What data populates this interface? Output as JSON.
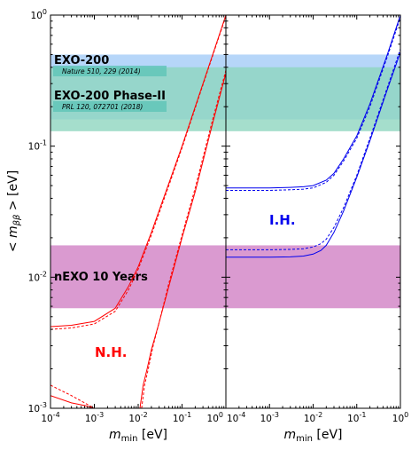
{
  "chart_data": [
    {
      "panel": "normal-hierarchy",
      "type": "line",
      "xscale": "log",
      "yscale": "log",
      "xlim": [
        0.0001,
        1
      ],
      "ylim": [
        0.001,
        1
      ],
      "xlabel": "m_min [eV]",
      "ylabel": "< m_ββ > [eV]",
      "x_tick_labels": [
        "10^-4",
        "10^-3",
        "10^-2",
        "10^-1",
        "10^0"
      ],
      "y_tick_labels": [
        "10^-3",
        "10^-2",
        "10^-1",
        "10^0"
      ],
      "label": "N.H.",
      "label_color": "#ff0000",
      "bands": [
        {
          "name": "EXO-200",
          "reference": "Nature 510, 229 (2014)",
          "y_range": [
            0.16,
            0.5
          ],
          "color": "#a9cff8"
        },
        {
          "name": "EXO-200 Phase-II",
          "reference": "PRL 120, 072701 (2018)",
          "y_range": [
            0.13,
            0.4
          ],
          "color": "#8fd6bf"
        },
        {
          "name": "nEXO 10 Years",
          "y_range": [
            0.0058,
            0.0175
          ],
          "color": "#d895cd"
        }
      ],
      "series": [
        {
          "line_style": "solid",
          "color": "#ff0000",
          "x": [
            0.0001,
            0.0003,
            0.001,
            0.003,
            0.006,
            0.01,
            0.02,
            0.05,
            0.1,
            0.2,
            0.5,
            1.0
          ],
          "y": [
            0.0042,
            0.0043,
            0.0046,
            0.0058,
            0.0085,
            0.012,
            0.022,
            0.052,
            0.1,
            0.2,
            0.5,
            1.0
          ]
        },
        {
          "line_style": "solid",
          "color": "#ff0000",
          "x": [
            0.0001,
            0.0003,
            0.0006,
            0.001
          ],
          "y": [
            0.00125,
            0.0011,
            0.00105,
            0.001
          ]
        },
        {
          "line_style": "solid",
          "color": "#ff0000",
          "x": [
            0.011,
            0.013,
            0.016,
            0.02,
            0.03,
            0.05,
            0.1,
            0.2,
            0.5,
            1.0
          ],
          "y": [
            0.001,
            0.0015,
            0.002,
            0.0028,
            0.0045,
            0.0085,
            0.02,
            0.045,
            0.15,
            0.36
          ]
        },
        {
          "line_style": "dashed",
          "color": "#ff0000",
          "x": [
            0.0001,
            0.0003,
            0.001,
            0.003,
            0.006,
            0.01,
            0.02,
            0.05,
            0.1,
            0.2,
            0.5,
            1.0
          ],
          "y": [
            0.004,
            0.0041,
            0.0044,
            0.0055,
            0.008,
            0.0115,
            0.021,
            0.05,
            0.097,
            0.195,
            0.49,
            0.98
          ]
        },
        {
          "line_style": "dashed",
          "color": "#ff0000",
          "x": [
            0.0001,
            0.0003,
            0.0006,
            0.001
          ],
          "y": [
            0.0015,
            0.00125,
            0.0011,
            0.001
          ]
        },
        {
          "line_style": "dashed",
          "color": "#ff0000",
          "x": [
            0.012,
            0.014,
            0.017,
            0.022,
            0.03,
            0.05,
            0.1,
            0.2,
            0.5,
            1.0
          ],
          "y": [
            0.001,
            0.0015,
            0.002,
            0.003,
            0.0045,
            0.009,
            0.021,
            0.048,
            0.16,
            0.38
          ]
        }
      ]
    },
    {
      "panel": "inverted-hierarchy",
      "type": "line",
      "xscale": "log",
      "yscale": "log",
      "xlim": [
        0.0001,
        1
      ],
      "ylim": [
        0.001,
        1
      ],
      "xlabel": "m_min [eV]",
      "x_tick_labels": [
        "10^-4",
        "10^-3",
        "10^-2",
        "10^-1",
        "10^0"
      ],
      "label": "I.H.",
      "label_color": "#0000ee",
      "series": [
        {
          "line_style": "solid",
          "color": "#0000ee",
          "x": [
            0.0001,
            0.001,
            0.003,
            0.006,
            0.01,
            0.02,
            0.03,
            0.05,
            0.1,
            0.2,
            0.5,
            1.0
          ],
          "y": [
            0.048,
            0.048,
            0.0485,
            0.049,
            0.05,
            0.055,
            0.062,
            0.08,
            0.12,
            0.21,
            0.5,
            1.0
          ]
        },
        {
          "line_style": "solid",
          "color": "#0000ee",
          "x": [
            0.0001,
            0.001,
            0.003,
            0.006,
            0.01,
            0.015,
            0.02,
            0.03,
            0.05,
            0.1,
            0.2,
            0.5,
            1.0
          ],
          "y": [
            0.0142,
            0.0142,
            0.0143,
            0.0145,
            0.015,
            0.016,
            0.0175,
            0.022,
            0.032,
            0.058,
            0.11,
            0.27,
            0.52
          ]
        },
        {
          "line_style": "dashed",
          "color": "#0000ee",
          "x": [
            0.0001,
            0.001,
            0.003,
            0.006,
            0.01,
            0.02,
            0.03,
            0.05,
            0.1,
            0.2,
            0.5,
            1.0
          ],
          "y": [
            0.046,
            0.046,
            0.0465,
            0.047,
            0.048,
            0.053,
            0.06,
            0.077,
            0.115,
            0.2,
            0.48,
            0.96
          ]
        },
        {
          "line_style": "dashed",
          "color": "#0000ee",
          "x": [
            0.0001,
            0.001,
            0.003,
            0.006,
            0.01,
            0.015,
            0.02,
            0.03,
            0.05,
            0.1,
            0.2,
            0.5,
            1.0
          ],
          "y": [
            0.0162,
            0.0162,
            0.0163,
            0.0165,
            0.017,
            0.018,
            0.0195,
            0.024,
            0.034,
            0.06,
            0.115,
            0.28,
            0.55
          ]
        }
      ]
    }
  ]
}
